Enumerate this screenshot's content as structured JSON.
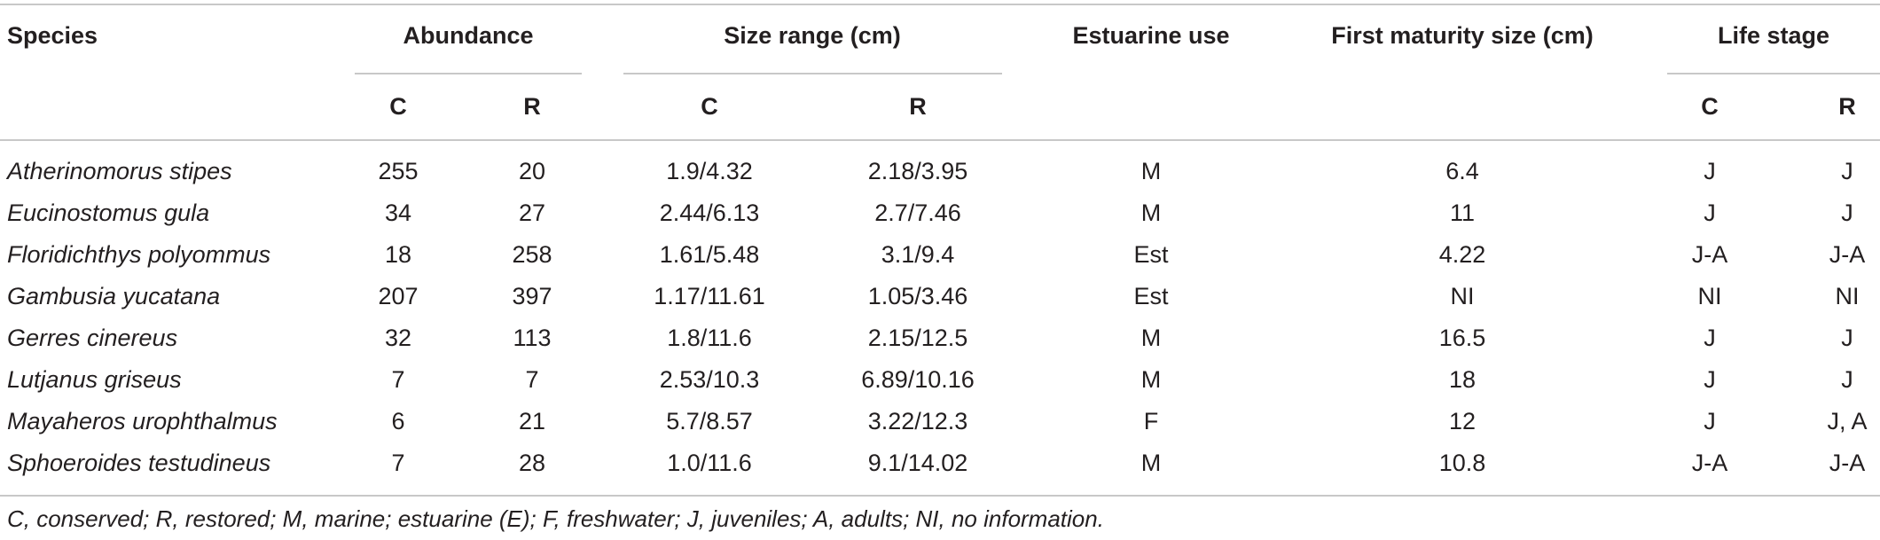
{
  "table": {
    "headers": {
      "species": "Species",
      "abundance": "Abundance",
      "size_range": "Size range (cm)",
      "estuarine_use": "Estuarine use",
      "first_maturity": "First maturity size (cm)",
      "life_stage": "Life stage"
    },
    "subheaders": {
      "ab_c": "C",
      "ab_r": "R",
      "sz_c": "C",
      "sz_r": "R",
      "ls_c": "C",
      "ls_r": "R"
    },
    "rows": [
      {
        "species": "Atherinomorus stipes",
        "ab_c": "255",
        "ab_r": "20",
        "sz_c": "1.9/4.32",
        "sz_r": "2.18/3.95",
        "use": "M",
        "maturity": "6.4",
        "ls_c": "J",
        "ls_r": "J"
      },
      {
        "species": "Eucinostomus gula",
        "ab_c": "34",
        "ab_r": "27",
        "sz_c": "2.44/6.13",
        "sz_r": "2.7/7.46",
        "use": "M",
        "maturity": "11",
        "ls_c": "J",
        "ls_r": "J"
      },
      {
        "species": "Floridichthys polyommus",
        "ab_c": "18",
        "ab_r": "258",
        "sz_c": "1.61/5.48",
        "sz_r": "3.1/9.4",
        "use": "Est",
        "maturity": "4.22",
        "ls_c": "J-A",
        "ls_r": "J-A"
      },
      {
        "species": "Gambusia yucatana",
        "ab_c": "207",
        "ab_r": "397",
        "sz_c": "1.17/11.61",
        "sz_r": "1.05/3.46",
        "use": "Est",
        "maturity": "NI",
        "ls_c": "NI",
        "ls_r": "NI"
      },
      {
        "species": "Gerres cinereus",
        "ab_c": "32",
        "ab_r": "113",
        "sz_c": "1.8/11.6",
        "sz_r": "2.15/12.5",
        "use": "M",
        "maturity": "16.5",
        "ls_c": "J",
        "ls_r": "J"
      },
      {
        "species": "Lutjanus griseus",
        "ab_c": "7",
        "ab_r": "7",
        "sz_c": "2.53/10.3",
        "sz_r": "6.89/10.16",
        "use": "M",
        "maturity": "18",
        "ls_c": "J",
        "ls_r": "J"
      },
      {
        "species": "Mayaheros urophthalmus",
        "ab_c": "6",
        "ab_r": "21",
        "sz_c": "5.7/8.57",
        "sz_r": "3.22/12.3",
        "use": "F",
        "maturity": "12",
        "ls_c": "J",
        "ls_r": "J, A"
      },
      {
        "species": "Sphoeroides testudineus",
        "ab_c": "7",
        "ab_r": "28",
        "sz_c": "1.0/11.6",
        "sz_r": "9.1/14.02",
        "use": "M",
        "maturity": "10.8",
        "ls_c": "J-A",
        "ls_r": "J-A"
      }
    ],
    "footnote": "C, conserved; R, restored; M, marine; estuarine (E); F, freshwater; J, juveniles; A, adults; NI, no information."
  }
}
